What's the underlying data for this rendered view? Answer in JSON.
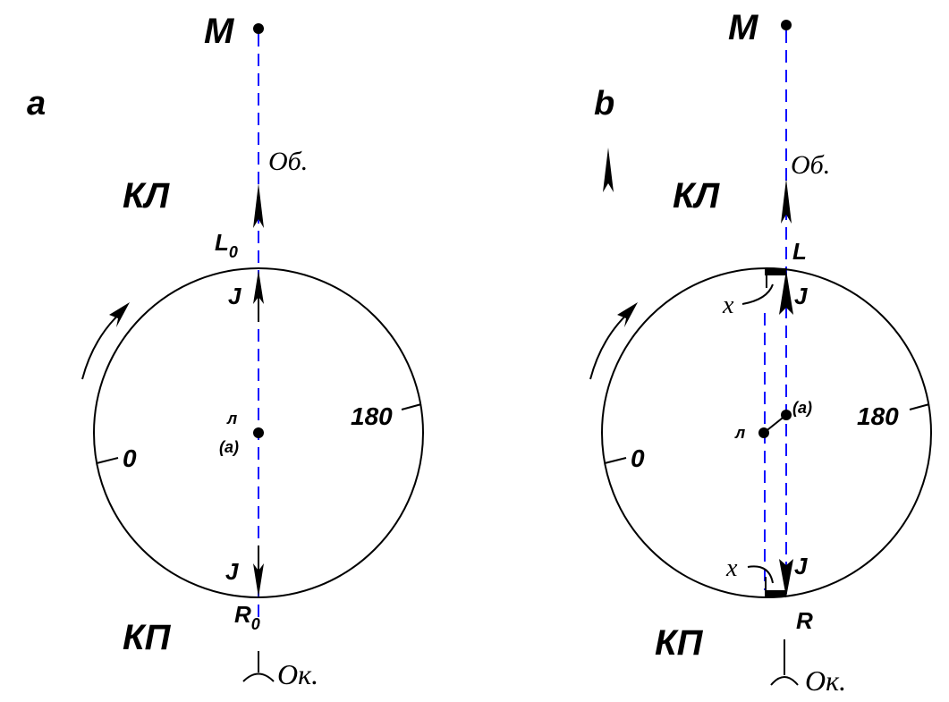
{
  "panels": [
    {
      "id": "a",
      "label": "a",
      "point_top": "M",
      "objective": "Об.",
      "face_left": "КЛ",
      "face_right": "КП",
      "reading_left": "L",
      "reading_left_sub": "0",
      "reading_right": "R",
      "reading_right_sub": "0",
      "index_top": "J",
      "index_bottom": "J",
      "center_label_1": "л",
      "center_label_2": "(а)",
      "scale_0": "0",
      "scale_180": "180",
      "eyepiece": "Ок."
    },
    {
      "id": "b",
      "label": "b",
      "point_top": "M",
      "objective": "Об.",
      "face_left": "КЛ",
      "face_right": "КП",
      "reading_left": "L",
      "reading_right": "R",
      "index_top": "J",
      "index_bottom": "J",
      "center_label_1": "л",
      "center_label_2": "(а)",
      "error_top": "x",
      "error_bottom": "x",
      "scale_0": "0",
      "scale_180": "180",
      "eyepiece": "Ок."
    }
  ],
  "colors": {
    "sight_line": "#1010ff",
    "ink": "#000000"
  }
}
